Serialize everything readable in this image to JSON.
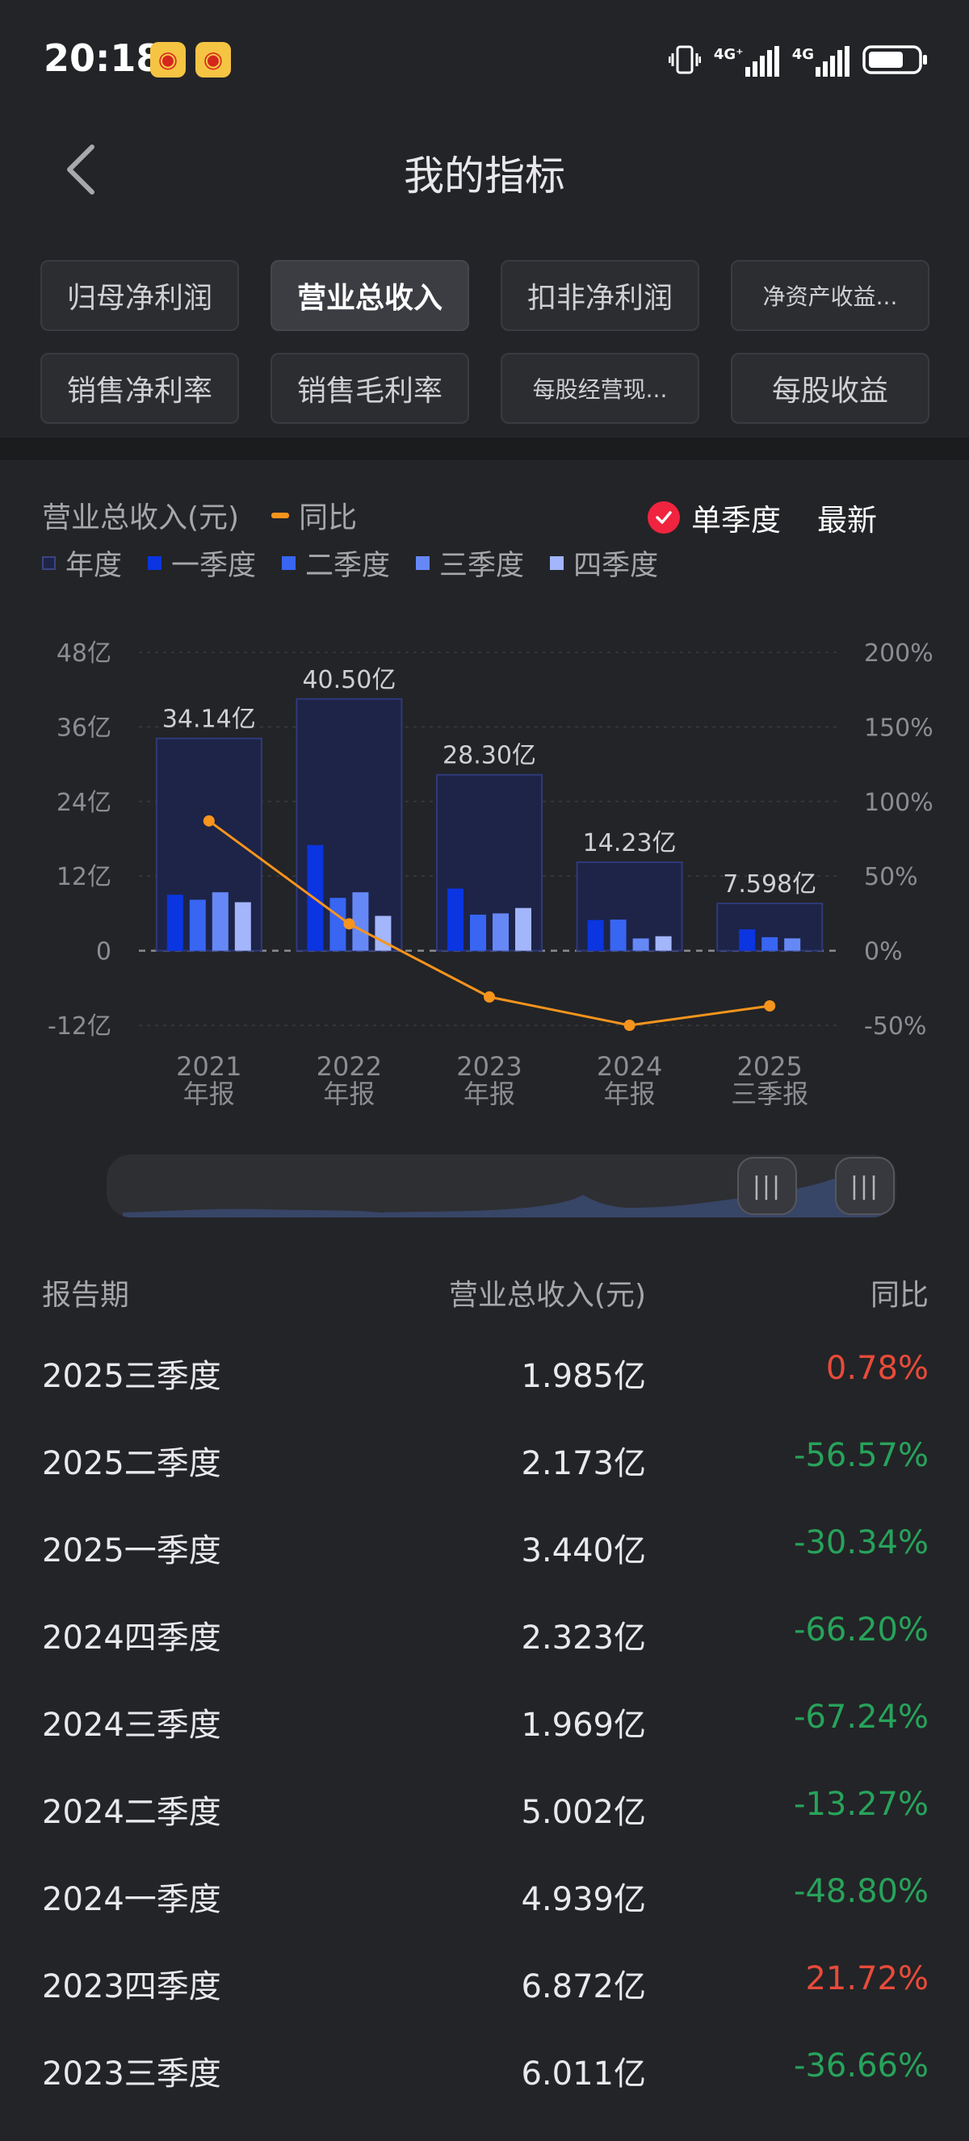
{
  "status_bar": {
    "time": "20:18",
    "icons": [
      "weibo-icon",
      "weibo-icon",
      "vibrate-icon",
      "signal-4g-icon",
      "signal-4g-icon",
      "battery-icon"
    ],
    "network_1": "4G⁺",
    "network_2": "4G"
  },
  "header": {
    "title": "我的指标"
  },
  "metric_tabs": [
    {
      "label": "归母净利润",
      "active": false
    },
    {
      "label": "营业总收入",
      "active": true
    },
    {
      "label": "扣非净利润",
      "active": false
    },
    {
      "label": "净资产收益...",
      "active": false
    },
    {
      "label": "销售净利率",
      "active": false
    },
    {
      "label": "销售毛利率",
      "active": false
    },
    {
      "label": "每股经营现...",
      "active": false
    },
    {
      "label": "每股收益",
      "active": false
    }
  ],
  "chart_header": {
    "title": "营业总收入(元)",
    "yoy_label": "同比",
    "single_quarter_label": "单季度",
    "single_quarter_checked": true,
    "latest_label": "最新"
  },
  "legend": [
    {
      "label": "年度",
      "color": "#1d2447"
    },
    {
      "label": "一季度",
      "color": "#0a35e0"
    },
    {
      "label": "二季度",
      "color": "#3865f2"
    },
    {
      "label": "三季度",
      "color": "#6688f7"
    },
    {
      "label": "四季度",
      "color": "#a3b5fb"
    }
  ],
  "chart_data": {
    "type": "bar",
    "title": "营业总收入(元)",
    "categories": [
      [
        "2021",
        "年报"
      ],
      [
        "2022",
        "年报"
      ],
      [
        "2023",
        "年报"
      ],
      [
        "2024",
        "年报"
      ],
      [
        "2025",
        "三季报"
      ]
    ],
    "annual": [
      34.14,
      40.5,
      28.3,
      14.23,
      7.598
    ],
    "annual_labels": [
      "34.14亿",
      "40.50亿",
      "28.30亿",
      "14.23亿",
      "7.598亿"
    ],
    "series": [
      {
        "name": "一季度",
        "values": [
          9.0,
          17.0,
          10.0,
          4.939,
          3.44
        ],
        "color": "#0a35e0"
      },
      {
        "name": "二季度",
        "values": [
          8.2,
          8.5,
          5.8,
          5.002,
          2.173
        ],
        "color": "#3865f2"
      },
      {
        "name": "三季度",
        "values": [
          9.4,
          9.4,
          6.0,
          1.969,
          1.985
        ],
        "color": "#6688f7"
      },
      {
        "name": "四季度",
        "values": [
          7.8,
          5.6,
          6.872,
          2.323,
          null
        ],
        "color": "#a3b5fb"
      }
    ],
    "yoy": {
      "name": "同比",
      "values": [
        87,
        18,
        -31,
        -50,
        -37
      ],
      "color": "#f7941d"
    },
    "y_left": {
      "ticks": [
        "48亿",
        "36亿",
        "24亿",
        "12亿",
        "0",
        "-12亿"
      ],
      "range": [
        -12,
        48
      ]
    },
    "y_right": {
      "ticks": [
        "200%",
        "150%",
        "100%",
        "50%",
        "0%",
        "-50%"
      ],
      "range": [
        -50,
        200
      ]
    },
    "grid": true
  },
  "table": {
    "headers": [
      "报告期",
      "营业总收入(元)",
      "同比"
    ],
    "rows": [
      {
        "period": "2025三季度",
        "revenue": "1.985亿",
        "yoy": "0.78%",
        "positive": true
      },
      {
        "period": "2025二季度",
        "revenue": "2.173亿",
        "yoy": "-56.57%",
        "positive": false
      },
      {
        "period": "2025一季度",
        "revenue": "3.440亿",
        "yoy": "-30.34%",
        "positive": false
      },
      {
        "period": "2024四季度",
        "revenue": "2.323亿",
        "yoy": "-66.20%",
        "positive": false
      },
      {
        "period": "2024三季度",
        "revenue": "1.969亿",
        "yoy": "-67.24%",
        "positive": false
      },
      {
        "period": "2024二季度",
        "revenue": "5.002亿",
        "yoy": "-13.27%",
        "positive": false
      },
      {
        "period": "2024一季度",
        "revenue": "4.939亿",
        "yoy": "-48.80%",
        "positive": false
      },
      {
        "period": "2023四季度",
        "revenue": "6.872亿",
        "yoy": "21.72%",
        "positive": true
      },
      {
        "period": "2023三季度",
        "revenue": "6.011亿",
        "yoy": "-36.66%",
        "positive": false
      }
    ]
  },
  "colors": {
    "up": "#e84b3a",
    "down": "#27a35b",
    "accent": "#f0243f",
    "yoy_line": "#f7941d"
  }
}
